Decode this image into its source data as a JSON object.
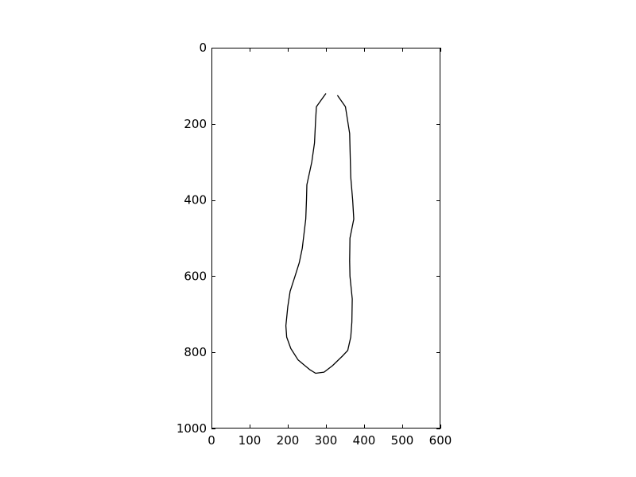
{
  "chart_data": {
    "type": "line",
    "title": "",
    "xlabel": "",
    "ylabel": "",
    "xlim": [
      0,
      600
    ],
    "ylim": [
      1000,
      0
    ],
    "y_inverted": true,
    "grid": false,
    "xticks": [
      0,
      100,
      200,
      300,
      400,
      500,
      600
    ],
    "yticks": [
      0,
      200,
      400,
      600,
      800,
      1000
    ],
    "line_color": "#000000",
    "series": [
      {
        "x": [
          300,
          275,
          273,
          270,
          263,
          250,
          249,
          247,
          238,
          230,
          219,
          206,
          200,
          195,
          197,
          208,
          227,
          257,
          273,
          295,
          317,
          343,
          357,
          365,
          368,
          369,
          363,
          362,
          363,
          373,
          370,
          365,
          362,
          351,
          330
        ],
        "y": [
          120,
          155,
          190,
          250,
          300,
          360,
          400,
          450,
          527,
          565,
          600,
          640,
          680,
          730,
          760,
          790,
          820,
          845,
          855,
          852,
          835,
          810,
          795,
          760,
          720,
          660,
          600,
          560,
          500,
          450,
          400,
          340,
          225,
          155,
          125
        ]
      }
    ]
  }
}
